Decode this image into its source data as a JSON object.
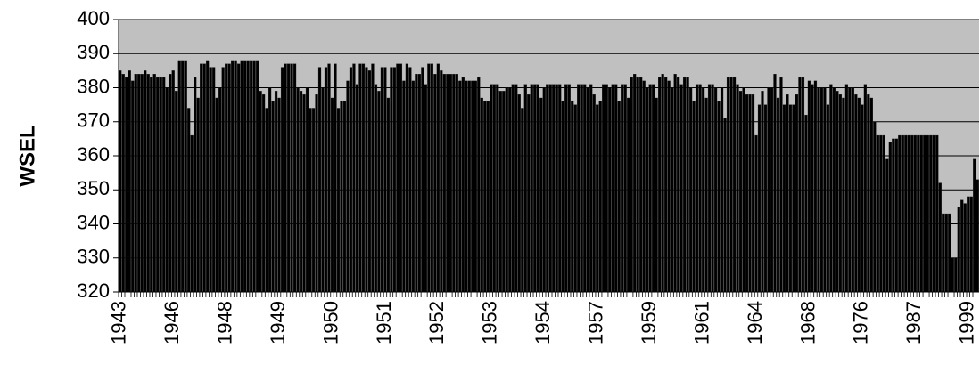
{
  "chart_data": {
    "type": "bar",
    "y_label": "WSEL",
    "categories": [
      "1943",
      null,
      null,
      null,
      null,
      null,
      null,
      null,
      null,
      null,
      null,
      null,
      null,
      null,
      null,
      null,
      null,
      "1946",
      null,
      null,
      null,
      null,
      null,
      null,
      null,
      null,
      null,
      null,
      null,
      null,
      null,
      null,
      null,
      null,
      "1948",
      null,
      null,
      null,
      null,
      null,
      null,
      null,
      null,
      null,
      null,
      null,
      null,
      null,
      null,
      null,
      null,
      "1949",
      null,
      null,
      null,
      null,
      null,
      null,
      null,
      null,
      null,
      null,
      null,
      null,
      null,
      null,
      null,
      null,
      "1950",
      null,
      null,
      null,
      null,
      null,
      null,
      null,
      null,
      null,
      null,
      null,
      null,
      null,
      null,
      null,
      null,
      "1951",
      null,
      null,
      null,
      null,
      null,
      null,
      null,
      null,
      null,
      null,
      null,
      null,
      null,
      null,
      null,
      null,
      "1952",
      null,
      null,
      null,
      null,
      null,
      null,
      null,
      null,
      null,
      null,
      null,
      null,
      null,
      null,
      null,
      null,
      "1953",
      null,
      null,
      null,
      null,
      null,
      null,
      null,
      null,
      null,
      null,
      null,
      null,
      null,
      null,
      null,
      null,
      "1954",
      null,
      null,
      null,
      null,
      null,
      null,
      null,
      null,
      null,
      null,
      null,
      null,
      null,
      null,
      null,
      null,
      "1957",
      null,
      null,
      null,
      null,
      null,
      null,
      null,
      null,
      null,
      null,
      null,
      null,
      null,
      null,
      null,
      null,
      "1959",
      null,
      null,
      null,
      null,
      null,
      null,
      null,
      null,
      null,
      null,
      null,
      null,
      null,
      null,
      null,
      null,
      "1961",
      null,
      null,
      null,
      null,
      null,
      null,
      null,
      null,
      null,
      null,
      null,
      null,
      null,
      null,
      null,
      null,
      "1964",
      null,
      null,
      null,
      null,
      null,
      null,
      null,
      null,
      null,
      null,
      null,
      null,
      null,
      null,
      null,
      null,
      "1968",
      null,
      null,
      null,
      null,
      null,
      null,
      null,
      null,
      null,
      null,
      null,
      null,
      null,
      null,
      null,
      null,
      "1976",
      null,
      null,
      null,
      null,
      null,
      null,
      null,
      null,
      null,
      null,
      null,
      null,
      null,
      null,
      null,
      null,
      "1987",
      null,
      null,
      null,
      null,
      null,
      null,
      null,
      null,
      null,
      null,
      null,
      null,
      null,
      null,
      null,
      null,
      "1999",
      null,
      null,
      null
    ],
    "values": [
      385,
      384,
      383,
      385,
      382,
      384,
      384,
      384,
      385,
      384,
      383,
      384,
      383,
      383,
      383,
      380,
      384,
      385,
      379,
      388,
      388,
      388,
      374,
      366,
      383,
      377,
      387,
      387,
      388,
      386,
      386,
      377,
      380,
      386,
      387,
      387,
      388,
      388,
      387,
      388,
      388,
      388,
      388,
      388,
      388,
      379,
      378,
      374,
      380,
      376,
      379,
      377,
      386,
      387,
      387,
      387,
      387,
      380,
      379,
      378,
      380,
      374,
      374,
      378,
      386,
      380,
      386,
      387,
      377,
      387,
      374,
      376,
      376,
      382,
      386,
      387,
      381,
      387,
      387,
      386,
      385,
      387,
      381,
      379,
      386,
      386,
      377,
      386,
      386,
      387,
      387,
      382,
      387,
      386,
      382,
      384,
      384,
      386,
      381,
      387,
      387,
      384,
      387,
      385,
      384,
      384,
      384,
      384,
      384,
      382,
      383,
      382,
      382,
      382,
      382,
      383,
      377,
      376,
      376,
      381,
      381,
      381,
      379,
      379,
      380,
      380,
      381,
      381,
      378,
      374,
      381,
      378,
      381,
      381,
      381,
      377,
      380,
      381,
      381,
      381,
      381,
      381,
      376,
      381,
      381,
      376,
      375,
      381,
      381,
      381,
      380,
      381,
      378,
      375,
      376,
      381,
      381,
      380,
      381,
      381,
      376,
      381,
      381,
      377,
      383,
      384,
      383,
      383,
      382,
      380,
      381,
      381,
      377,
      383,
      384,
      383,
      382,
      380,
      384,
      383,
      381,
      383,
      383,
      380,
      376,
      381,
      381,
      380,
      377,
      381,
      381,
      380,
      376,
      380,
      371,
      383,
      383,
      383,
      381,
      379,
      380,
      378,
      378,
      378,
      366,
      375,
      379,
      375,
      380,
      380,
      384,
      377,
      383,
      375,
      378,
      375,
      375,
      378,
      383,
      383,
      372,
      382,
      381,
      382,
      380,
      380,
      380,
      375,
      381,
      380,
      379,
      378,
      377,
      381,
      380,
      380,
      378,
      377,
      375,
      381,
      378,
      377,
      370,
      366,
      366,
      366,
      359,
      364,
      365,
      365,
      366,
      366,
      366,
      366,
      366,
      366,
      366,
      366,
      366,
      366,
      366,
      366,
      366,
      352,
      343,
      343,
      343,
      330,
      330,
      345,
      347,
      346,
      348,
      348,
      359,
      353
    ],
    "color": "#000000",
    "background": "#c0c0c0",
    "ylim": [
      320,
      400
    ],
    "yticks": [
      320,
      330,
      340,
      350,
      360,
      370,
      380,
      390,
      400
    ],
    "grid": true
  }
}
